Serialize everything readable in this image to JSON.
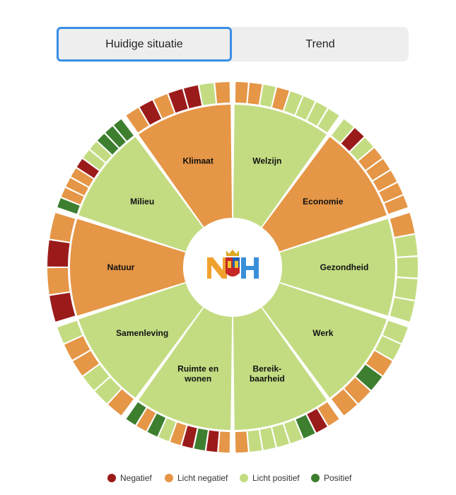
{
  "tabs": [
    {
      "label": "Huidige situatie"
    },
    {
      "label": "Trend"
    }
  ],
  "colors": {
    "negatief": "#9b1b1b",
    "licht_negatief": "#e59646",
    "licht_positief": "#c3dc82",
    "positief": "#3d7f2f"
  },
  "logo": {
    "text": "NH"
  },
  "sectors": [
    {
      "label": "Welzijn",
      "status": "licht_positief",
      "ring": [
        "licht_negatief",
        "licht_negatief",
        "licht_positief",
        "licht_negatief",
        "licht_positief",
        "licht_positief",
        "licht_positief",
        "licht_positief"
      ]
    },
    {
      "label": "Economie",
      "status": "licht_negatief",
      "ring": [
        "licht_positief",
        "negatief",
        "licht_positief",
        "licht_negatief",
        "licht_negatief",
        "licht_negatief",
        "licht_negatief",
        "licht_negatief"
      ]
    },
    {
      "label": "Gezondheid",
      "status": "licht_positief",
      "ring": [
        "licht_negatief",
        "licht_positief",
        "licht_positief",
        "licht_positief",
        "licht_positief"
      ]
    },
    {
      "label": "Werk",
      "status": "licht_positief",
      "ring": [
        "licht_positief",
        "licht_positief",
        "licht_negatief",
        "positief",
        "licht_negatief",
        "licht_negatief"
      ]
    },
    {
      "label": "Bereik- baarheid",
      "status": "licht_positief",
      "ring": [
        "licht_negatief",
        "negatief",
        "positief",
        "licht_positief",
        "licht_positief",
        "licht_positief",
        "licht_positief",
        "licht_negatief"
      ]
    },
    {
      "label": "Ruimte en wonen",
      "status": "licht_positief",
      "ring": [
        "licht_negatief",
        "negatief",
        "positief",
        "negatief",
        "licht_negatief",
        "licht_positief",
        "positief",
        "licht_negatief",
        "positief"
      ]
    },
    {
      "label": "Samenleving",
      "status": "licht_positief",
      "ring": [
        "licht_negatief",
        "licht_positief",
        "licht_positief",
        "licht_negatief",
        "licht_negatief",
        "licht_positief"
      ]
    },
    {
      "label": "Natuur",
      "status": "licht_negatief",
      "ring": [
        "negatief",
        "licht_negatief",
        "negatief",
        "licht_negatief"
      ]
    },
    {
      "label": "Milieu",
      "status": "licht_positief",
      "ring": [
        "positief",
        "licht_negatief",
        "licht_negatief",
        "licht_negatief",
        "negatief",
        "licht_positief",
        "licht_positief",
        "positief",
        "positief",
        "positief"
      ]
    },
    {
      "label": "Klimaat",
      "status": "licht_negatief",
      "ring": [
        "licht_negatief",
        "negatief",
        "licht_negatief",
        "negatief",
        "negatief",
        "licht_positief",
        "licht_negatief"
      ]
    }
  ],
  "legend": [
    {
      "label": "Negatief",
      "status": "negatief"
    },
    {
      "label": "Licht negatief",
      "status": "licht_negatief"
    },
    {
      "label": "Licht positief",
      "status": "licht_positief"
    },
    {
      "label": "Positief",
      "status": "positief"
    }
  ]
}
